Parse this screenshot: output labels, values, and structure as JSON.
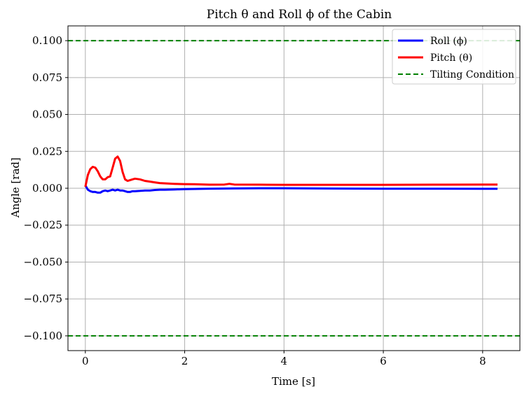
{
  "chart_data": {
    "type": "line",
    "title": "Pitch θ and Roll ϕ of the Cabin",
    "xlabel": "Time [s]",
    "ylabel": "Angle [rad]",
    "xlim": [
      -0.35,
      8.75
    ],
    "ylim": [
      -0.11,
      0.11
    ],
    "x_ticks": [
      0,
      2,
      4,
      6,
      8
    ],
    "x_tick_labels": [
      "0",
      "2",
      "4",
      "6",
      "8"
    ],
    "y_ticks": [
      0.1,
      0.075,
      0.05,
      0.025,
      0.0,
      -0.025,
      -0.05,
      -0.075,
      -0.1
    ],
    "y_tick_labels": [
      "0.100",
      "0.075",
      "0.050",
      "0.025",
      "0.000",
      "−0.025",
      "−0.050",
      "−0.075",
      "−0.100"
    ],
    "grid": true,
    "legend_position": "top-right",
    "series": [
      {
        "name": "Roll (ϕ)",
        "color": "#0000ff",
        "style": "solid",
        "x": [
          0.0,
          0.05,
          0.1,
          0.15,
          0.2,
          0.25,
          0.3,
          0.35,
          0.4,
          0.45,
          0.5,
          0.55,
          0.6,
          0.65,
          0.7,
          0.75,
          0.8,
          0.85,
          0.9,
          0.95,
          1.0,
          1.1,
          1.2,
          1.3,
          1.4,
          1.5,
          1.6,
          1.8,
          2.0,
          2.5,
          3.0,
          3.5,
          4.0,
          5.0,
          6.0,
          7.0,
          8.0,
          8.3
        ],
        "y": [
          0.002,
          -0.001,
          -0.002,
          -0.0025,
          -0.0025,
          -0.003,
          -0.003,
          -0.002,
          -0.0015,
          -0.002,
          -0.0015,
          -0.001,
          -0.0015,
          -0.001,
          -0.0015,
          -0.0015,
          -0.002,
          -0.0025,
          -0.0025,
          -0.002,
          -0.002,
          -0.0018,
          -0.0015,
          -0.0015,
          -0.0012,
          -0.001,
          -0.001,
          -0.0008,
          -0.0006,
          -0.0003,
          -0.0001,
          0.0,
          0.0,
          -0.0002,
          -0.0003,
          -0.0003,
          -0.0004,
          -0.0004
        ]
      },
      {
        "name": "Pitch (θ)",
        "color": "#ff0000",
        "style": "solid",
        "x": [
          0.0,
          0.05,
          0.1,
          0.15,
          0.2,
          0.25,
          0.3,
          0.35,
          0.4,
          0.45,
          0.5,
          0.55,
          0.6,
          0.65,
          0.7,
          0.75,
          0.8,
          0.85,
          0.9,
          0.95,
          1.0,
          1.1,
          1.2,
          1.3,
          1.4,
          1.5,
          1.6,
          1.8,
          2.0,
          2.2,
          2.5,
          2.8,
          2.9,
          3.0,
          3.5,
          4.0,
          5.0,
          6.0,
          7.0,
          8.0,
          8.3
        ],
        "y": [
          0.001,
          0.009,
          0.013,
          0.0145,
          0.014,
          0.0115,
          0.008,
          0.006,
          0.006,
          0.0075,
          0.008,
          0.014,
          0.02,
          0.0215,
          0.0185,
          0.011,
          0.006,
          0.005,
          0.0055,
          0.006,
          0.0065,
          0.006,
          0.005,
          0.0045,
          0.004,
          0.0035,
          0.0033,
          0.003,
          0.0028,
          0.0027,
          0.0024,
          0.0025,
          0.003,
          0.0025,
          0.0024,
          0.0023,
          0.0023,
          0.0023,
          0.0024,
          0.0025,
          0.0025
        ]
      },
      {
        "name": "Tilting Condition",
        "color": "#008000",
        "style": "dashed",
        "lines_y": [
          0.1,
          -0.1
        ]
      }
    ]
  }
}
